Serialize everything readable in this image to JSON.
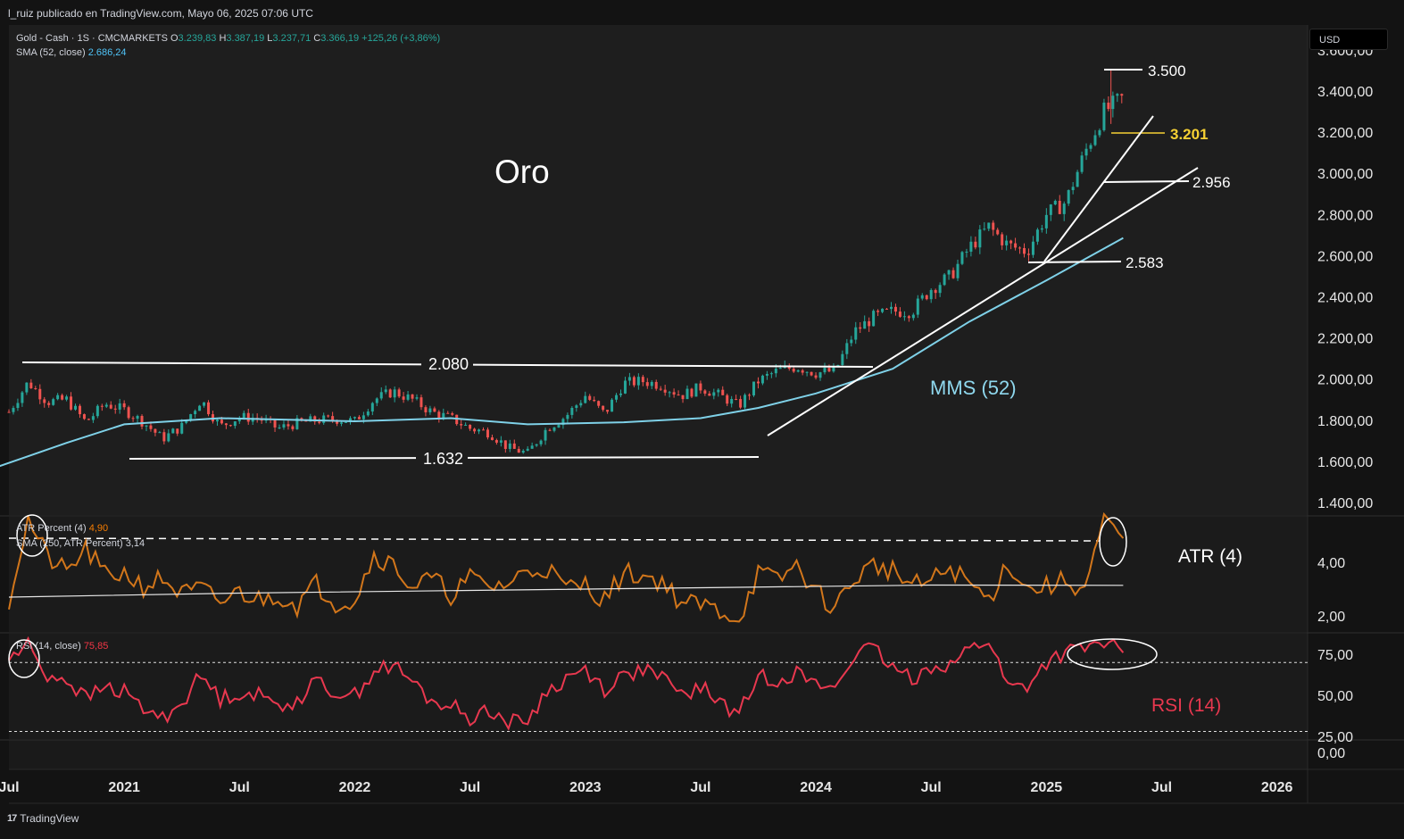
{
  "header": {
    "published": "l_ruiz publicado en TradingView.com, Mayo 06, 2025 07:06 UTC"
  },
  "legend": {
    "symbol": "Gold - Cash · 1S · CMCMARKETS",
    "o_label": "O",
    "o_val": "3.239,83",
    "h_label": "H",
    "h_val": "3.387,19",
    "l_label": "L",
    "l_val": "3.237,71",
    "c_label": "C",
    "c_val": "3.366,19",
    "change": "+125,26 (+3,86%)",
    "sma_label": "SMA (52, close)",
    "sma_val": "2.686,24"
  },
  "atr_legend": {
    "l1": "ATR Percent (4)",
    "v1": "4,90",
    "l2": "SMA (250, ATR Percent)",
    "v2": "3,14"
  },
  "rsi_legend": {
    "l1": "RSI (14, close)",
    "v1": "75,85"
  },
  "currency": "USD",
  "footer": {
    "logo_text": "TradingView"
  },
  "colors": {
    "bg": "#131313",
    "up": "#26a69a",
    "down": "#ef5350",
    "sma": "#7fd1e8",
    "atr": "#d2761b",
    "rsi": "#e8384f",
    "annotation_yellow": "#f5d033"
  },
  "chart_data": [
    {
      "type": "candlestick",
      "title": "Oro",
      "series_label": "MMS (52)",
      "y_ticks": [
        "1.400,00",
        "1.600,00",
        "1.800,00",
        "2.000,00",
        "2.200,00",
        "2.400,00",
        "2.600,00",
        "2.800,00",
        "3.000,00",
        "3.200,00",
        "3.400,00",
        "3.600,00"
      ],
      "x_ticks": [
        "Jul",
        "2021",
        "Jul",
        "2022",
        "Jul",
        "2023",
        "Jul",
        "2024",
        "Jul",
        "2025",
        "Jul",
        "2026"
      ],
      "ylim": [
        1400,
        3600
      ],
      "price_path": [
        [
          "2020-07",
          1840
        ],
        [
          "2020-08",
          1985
        ],
        [
          "2020-09",
          1890
        ],
        [
          "2020-10",
          1900
        ],
        [
          "2020-11",
          1790
        ],
        [
          "2020-12",
          1880
        ],
        [
          "2021-01",
          1850
        ],
        [
          "2021-02",
          1790
        ],
        [
          "2021-03",
          1710
        ],
        [
          "2021-04",
          1770
        ],
        [
          "2021-05",
          1900
        ],
        [
          "2021-06",
          1770
        ],
        [
          "2021-07",
          1815
        ],
        [
          "2021-08",
          1810
        ],
        [
          "2021-09",
          1760
        ],
        [
          "2021-10",
          1785
        ],
        [
          "2021-11",
          1800
        ],
        [
          "2021-12",
          1805
        ],
        [
          "2022-01",
          1795
        ],
        [
          "2022-02",
          1900
        ],
        [
          "2022-03",
          1940
        ],
        [
          "2022-04",
          1900
        ],
        [
          "2022-05",
          1840
        ],
        [
          "2022-06",
          1810
        ],
        [
          "2022-07",
          1760
        ],
        [
          "2022-08",
          1740
        ],
        [
          "2022-09",
          1665
        ],
        [
          "2022-10",
          1640
        ],
        [
          "2022-11",
          1760
        ],
        [
          "2022-12",
          1820
        ],
        [
          "2023-01",
          1920
        ],
        [
          "2023-02",
          1830
        ],
        [
          "2023-03",
          1980
        ],
        [
          "2023-04",
          1990
        ],
        [
          "2023-05",
          1970
        ],
        [
          "2023-06",
          1920
        ],
        [
          "2023-07",
          1960
        ],
        [
          "2023-08",
          1920
        ],
        [
          "2023-09",
          1870
        ],
        [
          "2023-10",
          1990
        ],
        [
          "2023-11",
          2040
        ],
        [
          "2023-12",
          2060
        ],
        [
          "2024-01",
          2030
        ],
        [
          "2024-02",
          2040
        ],
        [
          "2024-03",
          2230
        ],
        [
          "2024-04",
          2300
        ],
        [
          "2024-05",
          2330
        ],
        [
          "2024-06",
          2330
        ],
        [
          "2024-07",
          2440
        ],
        [
          "2024-08",
          2500
        ],
        [
          "2024-09",
          2640
        ],
        [
          "2024-10",
          2740
        ],
        [
          "2024-11",
          2650
        ],
        [
          "2024-12",
          2620
        ],
        [
          "2025-01",
          2800
        ],
        [
          "2025-02",
          2860
        ],
        [
          "2025-03",
          3100
        ],
        [
          "2025-04",
          3300
        ],
        [
          "2025-05",
          3366
        ]
      ],
      "sma52_path": [
        [
          "2020-06",
          1560
        ],
        [
          "2020-10",
          1690
        ],
        [
          "2021-01",
          1780
        ],
        [
          "2021-06",
          1810
        ],
        [
          "2022-01",
          1795
        ],
        [
          "2022-06",
          1810
        ],
        [
          "2022-10",
          1780
        ],
        [
          "2023-03",
          1790
        ],
        [
          "2023-07",
          1810
        ],
        [
          "2023-10",
          1860
        ],
        [
          "2024-01",
          1930
        ],
        [
          "2024-05",
          2050
        ],
        [
          "2024-09",
          2280
        ],
        [
          "2025-01",
          2480
        ],
        [
          "2025-05",
          2686
        ]
      ],
      "levels": [
        {
          "label": "3.500",
          "value": 3500
        },
        {
          "label": "3.201",
          "value": 3201
        },
        {
          "label": "2.956",
          "value": 2956
        },
        {
          "label": "2.583",
          "value": 2583
        },
        {
          "label": "2.080",
          "value": 2080
        },
        {
          "label": "1.632",
          "value": 1632
        }
      ]
    },
    {
      "type": "line",
      "series_label": "ATR (4)",
      "y_ticks": [
        "2,00",
        "4,00"
      ],
      "ylim": [
        1.5,
        6.0
      ],
      "levels": [
        5.1
      ],
      "atr_path": [
        [
          "2020-07",
          2.6
        ],
        [
          "2020-08",
          5.6
        ],
        [
          "2020-09",
          4.2
        ],
        [
          "2020-10",
          3.6
        ],
        [
          "2020-11",
          4.5
        ],
        [
          "2020-12",
          3.5
        ],
        [
          "2021-01",
          3.6
        ],
        [
          "2021-02",
          3.1
        ],
        [
          "2021-03",
          3.4
        ],
        [
          "2021-04",
          2.8
        ],
        [
          "2021-05",
          3.0
        ],
        [
          "2021-06",
          2.5
        ],
        [
          "2021-07",
          2.9
        ],
        [
          "2021-08",
          2.6
        ],
        [
          "2021-09",
          2.8
        ],
        [
          "2021-10",
          2.4
        ],
        [
          "2021-11",
          3.2
        ],
        [
          "2021-12",
          2.5
        ],
        [
          "2022-01",
          2.6
        ],
        [
          "2022-02",
          4.3
        ],
        [
          "2022-03",
          3.9
        ],
        [
          "2022-04",
          3.1
        ],
        [
          "2022-05",
          3.4
        ],
        [
          "2022-06",
          2.8
        ],
        [
          "2022-07",
          3.4
        ],
        [
          "2022-08",
          3.1
        ],
        [
          "2022-09",
          3.2
        ],
        [
          "2022-10",
          3.7
        ],
        [
          "2022-11",
          3.8
        ],
        [
          "2022-12",
          3.0
        ],
        [
          "2023-01",
          3.2
        ],
        [
          "2023-02",
          2.6
        ],
        [
          "2023-03",
          3.6
        ],
        [
          "2023-04",
          3.5
        ],
        [
          "2023-05",
          3.3
        ],
        [
          "2023-06",
          2.5
        ],
        [
          "2023-07",
          2.4
        ],
        [
          "2023-08",
          2.2
        ],
        [
          "2023-09",
          1.9
        ],
        [
          "2023-10",
          3.6
        ],
        [
          "2023-11",
          3.3
        ],
        [
          "2023-12",
          3.9
        ],
        [
          "2024-01",
          2.9
        ],
        [
          "2024-02",
          2.3
        ],
        [
          "2024-03",
          3.4
        ],
        [
          "2024-04",
          3.9
        ],
        [
          "2024-05",
          3.7
        ],
        [
          "2024-06",
          3.1
        ],
        [
          "2024-07",
          3.3
        ],
        [
          "2024-08",
          3.8
        ],
        [
          "2024-09",
          3.2
        ],
        [
          "2024-10",
          2.6
        ],
        [
          "2024-11",
          4.0
        ],
        [
          "2024-12",
          3.0
        ],
        [
          "2025-01",
          3.1
        ],
        [
          "2025-02",
          3.3
        ],
        [
          "2025-03",
          3.0
        ],
        [
          "2025-04",
          5.5
        ],
        [
          "2025-05",
          4.9
        ]
      ],
      "sma250_path": [
        [
          "2020-07",
          2.7
        ],
        [
          "2021-07",
          2.85
        ],
        [
          "2022-07",
          2.95
        ],
        [
          "2023-07",
          3.05
        ],
        [
          "2024-07",
          3.15
        ],
        [
          "2025-05",
          3.14
        ]
      ]
    },
    {
      "type": "line",
      "series_label": "RSI (14)",
      "y_ticks": [
        "0,00",
        "25,00",
        "50,00",
        "75,00"
      ],
      "ylim": [
        20,
        88
      ],
      "levels": [
        28,
        70
      ],
      "rsi_path": [
        [
          "2020-07",
          72
        ],
        [
          "2020-08",
          81
        ],
        [
          "2020-09",
          62
        ],
        [
          "2020-10",
          60
        ],
        [
          "2020-11",
          48
        ],
        [
          "2020-12",
          55
        ],
        [
          "2021-01",
          52
        ],
        [
          "2021-02",
          42
        ],
        [
          "2021-03",
          36
        ],
        [
          "2021-04",
          46
        ],
        [
          "2021-05",
          62
        ],
        [
          "2021-06",
          48
        ],
        [
          "2021-07",
          52
        ],
        [
          "2021-08",
          50
        ],
        [
          "2021-09",
          44
        ],
        [
          "2021-10",
          47
        ],
        [
          "2021-11",
          58
        ],
        [
          "2021-12",
          52
        ],
        [
          "2022-01",
          50
        ],
        [
          "2022-02",
          65
        ],
        [
          "2022-03",
          68
        ],
        [
          "2022-04",
          58
        ],
        [
          "2022-05",
          46
        ],
        [
          "2022-06",
          44
        ],
        [
          "2022-07",
          36
        ],
        [
          "2022-08",
          42
        ],
        [
          "2022-09",
          33
        ],
        [
          "2022-10",
          35
        ],
        [
          "2022-11",
          52
        ],
        [
          "2022-12",
          60
        ],
        [
          "2023-01",
          66
        ],
        [
          "2023-02",
          54
        ],
        [
          "2023-03",
          62
        ],
        [
          "2023-04",
          66
        ],
        [
          "2023-05",
          60
        ],
        [
          "2023-06",
          50
        ],
        [
          "2023-07",
          55
        ],
        [
          "2023-08",
          46
        ],
        [
          "2023-09",
          38
        ],
        [
          "2023-10",
          62
        ],
        [
          "2023-11",
          60
        ],
        [
          "2023-12",
          64
        ],
        [
          "2024-01",
          56
        ],
        [
          "2024-02",
          55
        ],
        [
          "2024-03",
          75
        ],
        [
          "2024-04",
          78
        ],
        [
          "2024-05",
          66
        ],
        [
          "2024-06",
          60
        ],
        [
          "2024-07",
          68
        ],
        [
          "2024-08",
          69
        ],
        [
          "2024-09",
          78
        ],
        [
          "2024-10",
          84
        ],
        [
          "2024-11",
          55
        ],
        [
          "2024-12",
          56
        ],
        [
          "2025-01",
          70
        ],
        [
          "2025-02",
          76
        ],
        [
          "2025-03",
          78
        ],
        [
          "2025-04",
          82
        ],
        [
          "2025-05",
          76
        ]
      ]
    }
  ]
}
